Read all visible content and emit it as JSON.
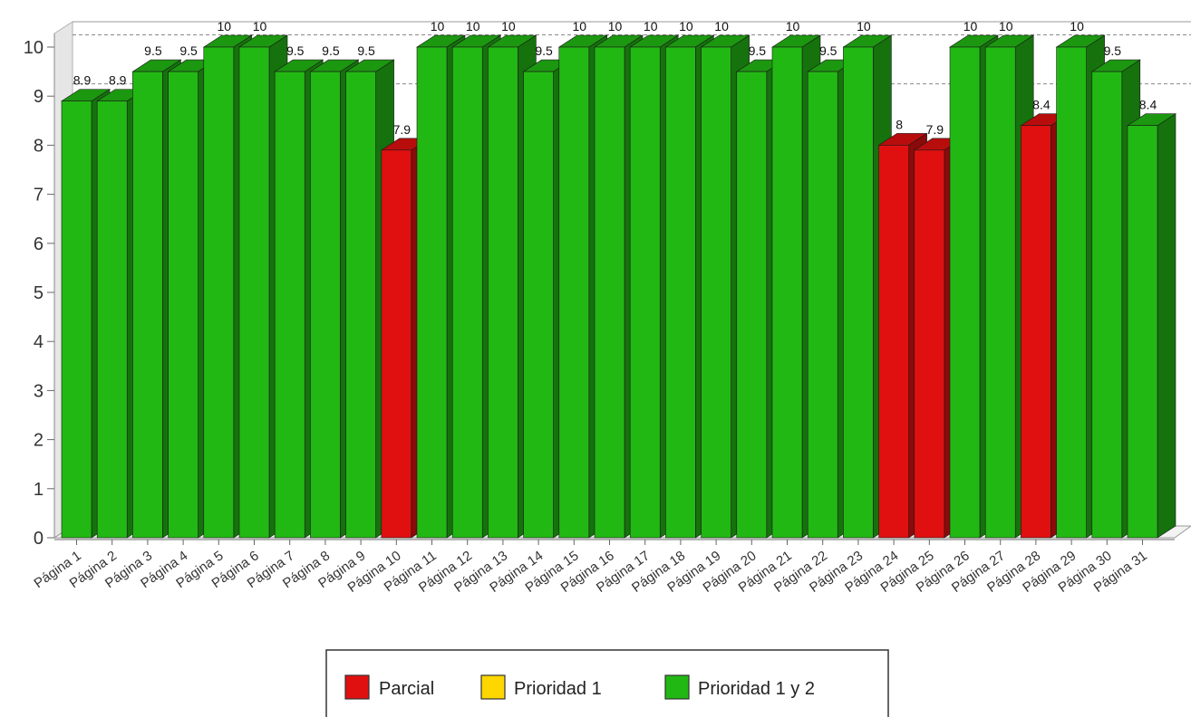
{
  "chart_data": {
    "type": "bar",
    "title": "",
    "xlabel": "",
    "ylabel": "",
    "ylim": [
      0,
      10
    ],
    "yticks": [
      0,
      1,
      2,
      3,
      4,
      5,
      6,
      7,
      8,
      9,
      10
    ],
    "grid": "dashed lines at reference levels",
    "reference_lines": [
      9.25,
      10.25
    ],
    "legend_position": "bottom-center",
    "categories": [
      "Página 1",
      "Página 2",
      "Página 3",
      "Página 4",
      "Página 5",
      "Página 6",
      "Página 7",
      "Página 8",
      "Página 9",
      "Página 10",
      "Página 11",
      "Página 12",
      "Página 13",
      "Página 14",
      "Página 15",
      "Página 16",
      "Página 17",
      "Página 18",
      "Página 19",
      "Página 20",
      "Página 21",
      "Página 22",
      "Página 23",
      "Página 24",
      "Página 25",
      "Página 26",
      "Página 27",
      "Página 28",
      "Página 29",
      "Página 30",
      "Página 31"
    ],
    "values": [
      8.9,
      8.9,
      9.5,
      9.5,
      10,
      10,
      9.5,
      9.5,
      9.5,
      7.9,
      10,
      10,
      10,
      9.5,
      10,
      10,
      10,
      10,
      10,
      9.5,
      10,
      9.5,
      10,
      8,
      7.9,
      10,
      10,
      8.4,
      10,
      9.5,
      8.4
    ],
    "data_labels": [
      "8.9",
      "8.9",
      "9.5",
      "9.5",
      "10",
      "10",
      "9.5",
      "9.5",
      "9.5",
      "7.9",
      "10",
      "10",
      "10",
      "9.5",
      "10",
      "10",
      "10",
      "10",
      "10",
      "9.5",
      "10",
      "9.5",
      "10",
      "8",
      "7.9",
      "10",
      "10",
      "8.4",
      "10",
      "9.5",
      "8.4"
    ],
    "bar_category": [
      "Prioridad 1 y 2",
      "Prioridad 1 y 2",
      "Prioridad 1 y 2",
      "Prioridad 1 y 2",
      "Prioridad 1 y 2",
      "Prioridad 1 y 2",
      "Prioridad 1 y 2",
      "Prioridad 1 y 2",
      "Prioridad 1 y 2",
      "Parcial",
      "Prioridad 1 y 2",
      "Prioridad 1 y 2",
      "Prioridad 1 y 2",
      "Prioridad 1 y 2",
      "Prioridad 1 y 2",
      "Prioridad 1 y 2",
      "Prioridad 1 y 2",
      "Prioridad 1 y 2",
      "Prioridad 1 y 2",
      "Prioridad 1 y 2",
      "Prioridad 1 y 2",
      "Prioridad 1 y 2",
      "Prioridad 1 y 2",
      "Parcial",
      "Parcial",
      "Prioridad 1 y 2",
      "Prioridad 1 y 2",
      "Parcial",
      "Prioridad 1 y 2",
      "Prioridad 1 y 2",
      "Prioridad 1 y 2"
    ],
    "legend": [
      {
        "label": "Parcial",
        "color": "#e01010"
      },
      {
        "label": "Prioridad 1",
        "color": "#ffd700"
      },
      {
        "label": "Prioridad 1 y 2",
        "color": "#22b814"
      }
    ]
  }
}
